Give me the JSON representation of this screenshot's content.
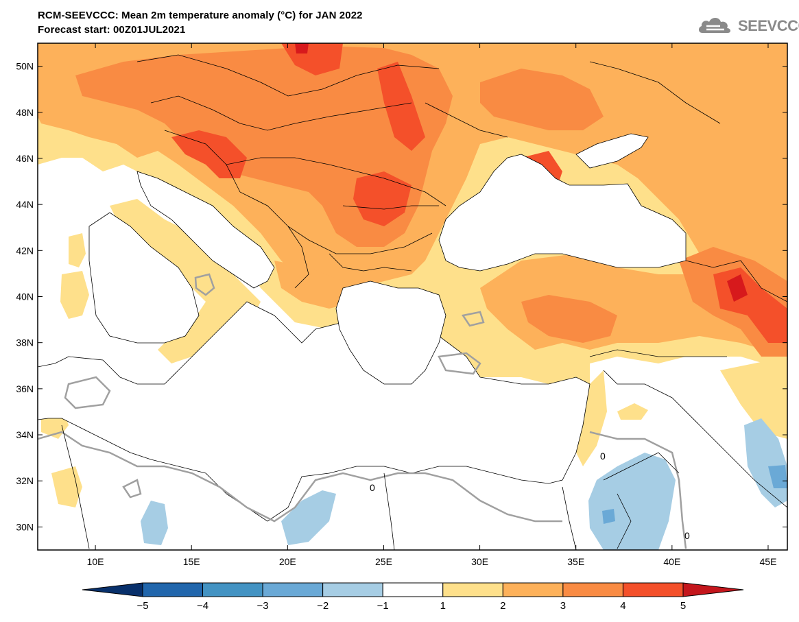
{
  "header": {
    "title": "RCM-SEEVCCC: Mean 2m temperature anomaly (°C) for JAN 2022",
    "subtitle": "Forecast start: 00Z01JUL2021"
  },
  "logo": {
    "text": "SEEVCCC"
  },
  "map": {
    "lon_range": [
      7,
      46
    ],
    "lat_range": [
      29,
      51
    ],
    "lon_ticks": [
      "10E",
      "15E",
      "20E",
      "25E",
      "30E",
      "35E",
      "40E",
      "45E"
    ],
    "lat_ticks": [
      "50N",
      "48N",
      "46N",
      "44N",
      "42N",
      "40N",
      "38N",
      "36N",
      "34N",
      "32N",
      "30N"
    ],
    "contour_label": "0"
  },
  "colorbar": {
    "labels": [
      "−5",
      "−4",
      "−3",
      "−2",
      "−1",
      "1",
      "2",
      "3",
      "4",
      "5"
    ],
    "colors": {
      "below": "#08306b",
      "bins": [
        "#2166ac",
        "#4393c3",
        "#6aa9d6",
        "#a6cde4",
        "#ffffff",
        "#fee08b",
        "#fdb15a",
        "#f98b43",
        "#f4502a"
      ],
      "above": "#c4161c"
    }
  },
  "colors": {
    "anom_1_2": "#fee08b",
    "anom_2_3": "#fdb15a",
    "anom_3_4": "#f98b43",
    "anom_4_5": "#f4502a",
    "anom_gt5": "#d7191c",
    "anom_m1_m2": "#a6cde4",
    "anom_m2_m3": "#6aa9d6",
    "zero_contour": "#a0a0a0"
  }
}
